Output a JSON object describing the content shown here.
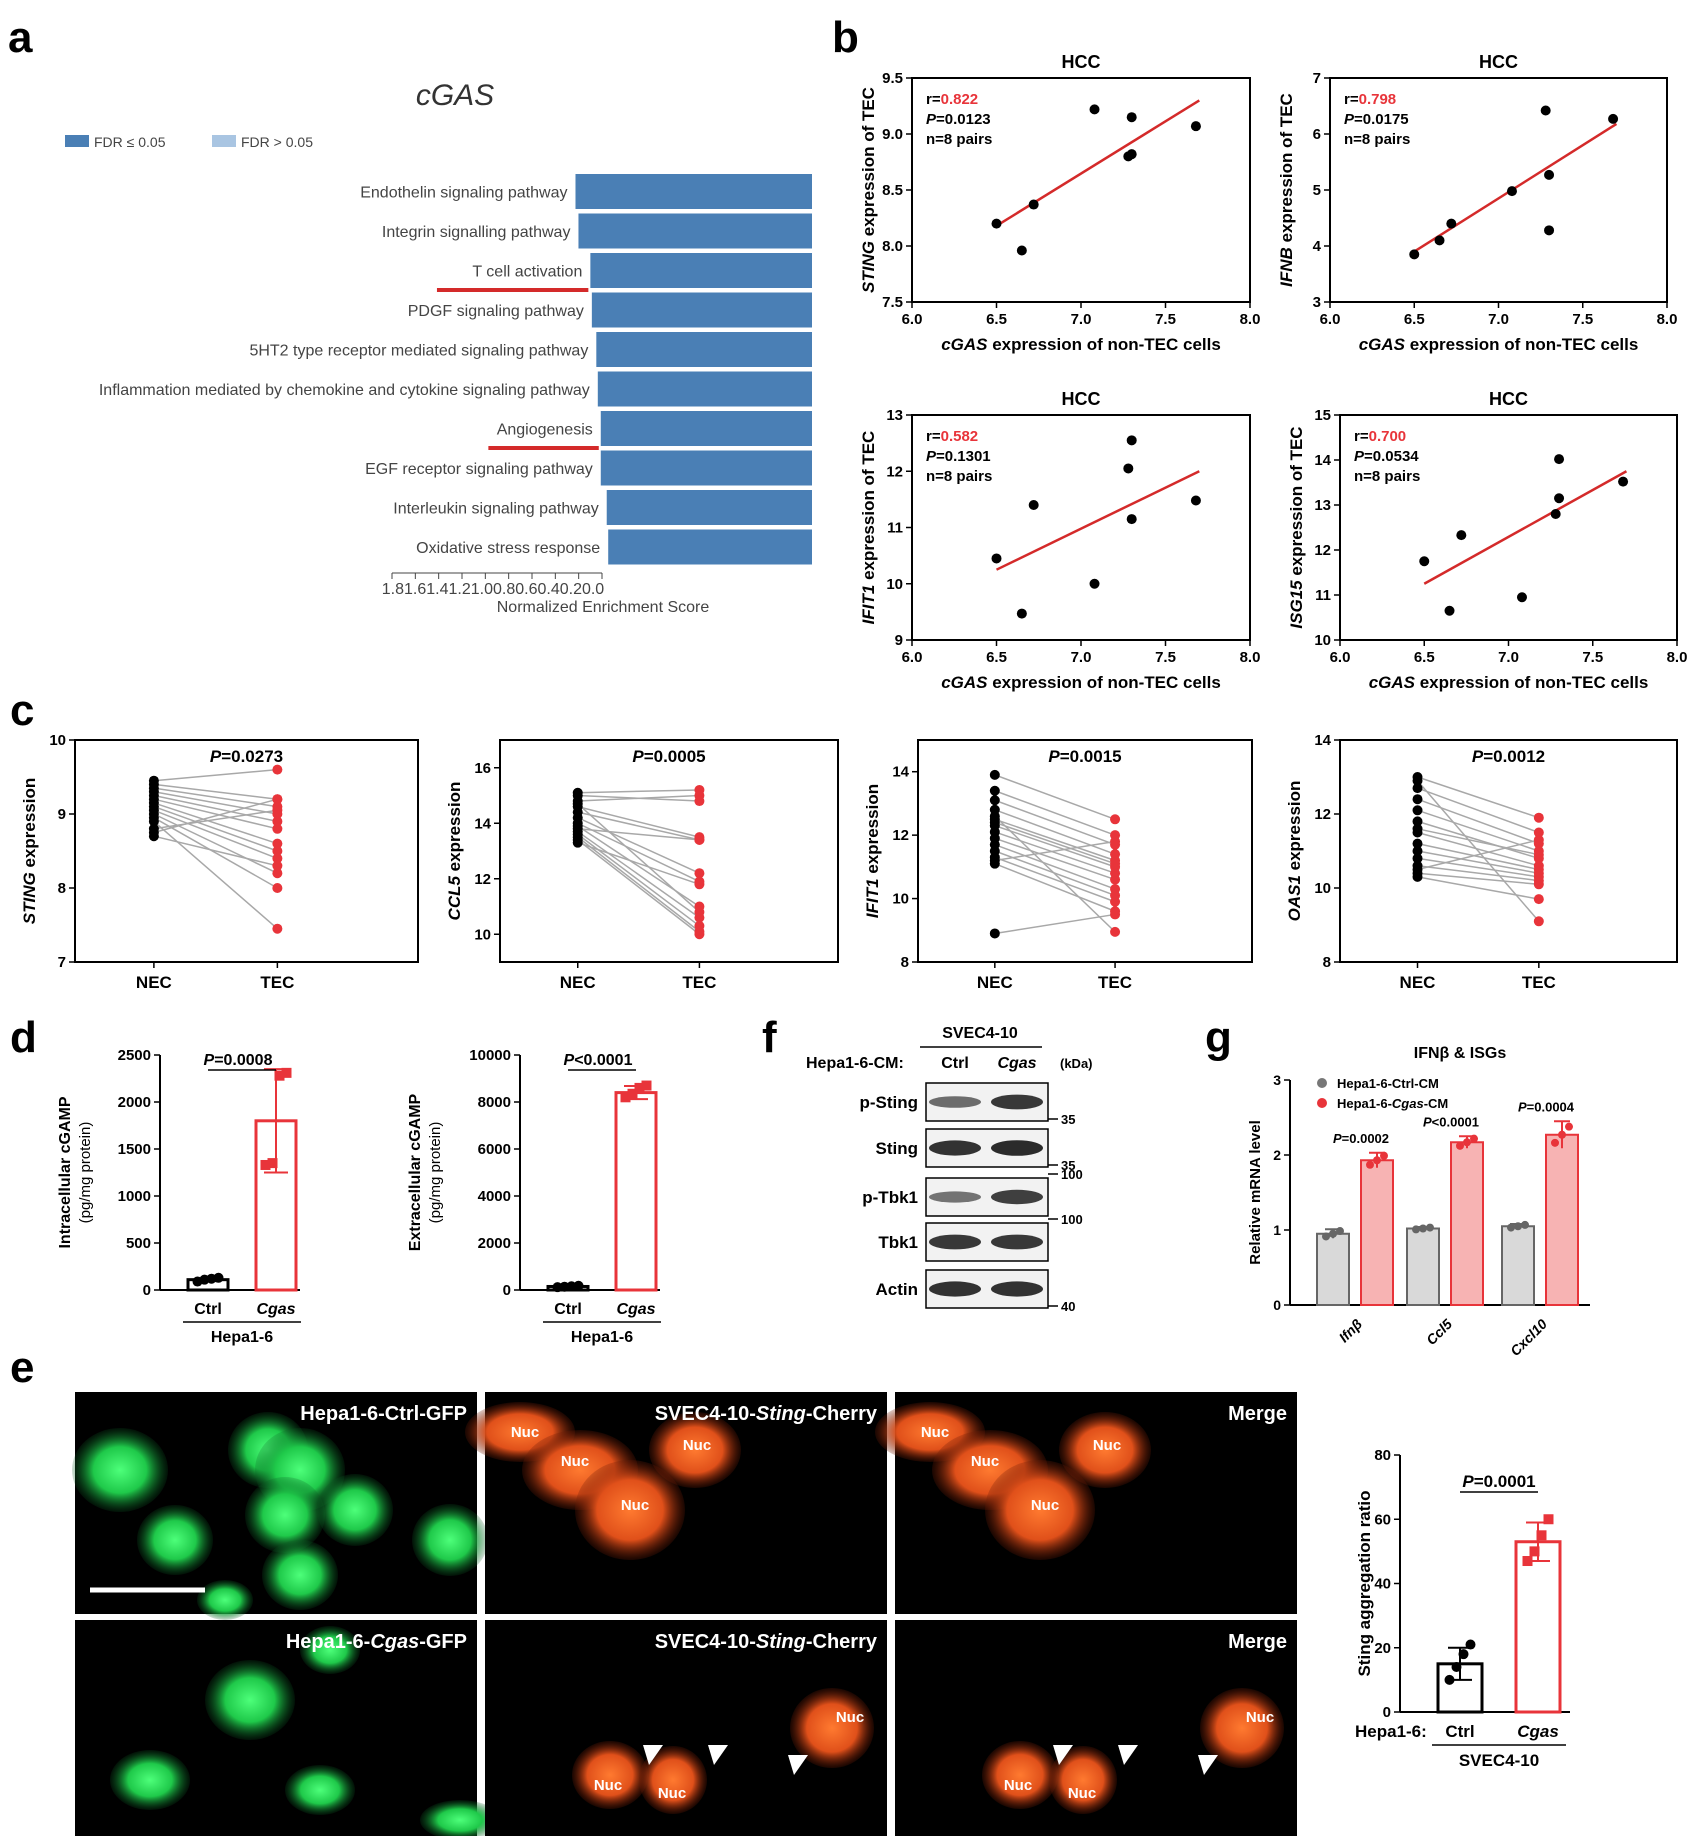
{
  "panel_labels": {
    "a": "a",
    "b": "b",
    "c": "c",
    "d": "d",
    "e": "e",
    "f": "f",
    "g": "g"
  },
  "colors": {
    "bar_blue": "#4a7fb5",
    "bar_light": "#a9c5e2",
    "red": "#e8343a",
    "red_fill": "#f7b3b3",
    "grey_line": "#a8a8a8",
    "grey_fill": "#d9d9d9",
    "fit_red": "#d42a2a"
  },
  "panel_a": {
    "title": "cGAS",
    "legend": [
      "FDR ≤ 0.05",
      "FDR > 0.05"
    ],
    "x_tick_string": "1.81.61.41.21.00.80.60.40.20.0",
    "xlabel": "Normalized Enrichment Score"
  },
  "panel_b_c_text": {
    "hcc": "HCC",
    "xlabel_b": "cGAS expression of non-TEC cells",
    "n_text": "n=8 pairs",
    "nec": "NEC",
    "tec": "TEC"
  },
  "panel_d": {
    "pairs": [
      {
        "ylabel1": "Intracellular cGAMP",
        "ylabel2": "(pg/mg protein)",
        "p_text": "P=0.0008",
        "ctrl": "Ctrl",
        "cgas": "Cgas",
        "group": "Hepa1-6"
      },
      {
        "ylabel1": "Extracellular cGAMP",
        "ylabel2": "(pg/mg protein)",
        "p_text": "P<0.0001",
        "ctrl": "Ctrl",
        "cgas": "Cgas",
        "group": "Hepa1-6"
      }
    ]
  },
  "panel_e": {
    "top_labels": [
      "Hepa1-6-Ctrl-GFP",
      "SVEC4-10-Sting-Cherry",
      "Merge"
    ],
    "bottom_labels": [
      "Hepa1-6-Cgas-GFP",
      "SVEC4-10-Sting-Cherry",
      "Merge"
    ],
    "nuc": "Nuc",
    "bar_ylabel": "Sting aggregation ratio",
    "bar_p": "P=0.0001",
    "bar_group_label": "Hepa1-6:",
    "bar_ctrl": "Ctrl",
    "bar_cgas": "Cgas",
    "bar_cell": "SVEC4-10"
  },
  "panel_f": {
    "cell": "SVEC4-10",
    "cm_label": "Hepa1-6-CM:",
    "lanes": [
      "Ctrl",
      "Cgas"
    ],
    "kda": "(kDa)",
    "blots": [
      {
        "name": "p-Sting",
        "marker": "35"
      },
      {
        "name": "Sting",
        "marker": "35"
      },
      {
        "name": "p-Tbk1",
        "marker": "100"
      },
      {
        "name": "Tbk1",
        "marker": "100"
      },
      {
        "name": "Actin",
        "marker": "40"
      }
    ]
  },
  "panel_g": {
    "title": "IFNβ & ISGs",
    "ylabel": "Relative mRNA level",
    "legend": [
      "Hepa1-6-Ctrl-CM",
      "Hepa1-6-Cgas-CM"
    ],
    "p_values": [
      "P=0.0002",
      "P<0.0001",
      "P=0.0004"
    ]
  },
  "chart_data": [
    {
      "id": "a",
      "type": "bar",
      "orientation": "horizontal",
      "title": "cGAS",
      "xlabel": "Normalized Enrichment Score",
      "xlim": [
        0,
        1.8
      ],
      "categories": [
        "Endothelin signaling pathway",
        "Integrin signalling pathway",
        "T cell activation",
        "PDGF signaling pathway",
        "5HT2 type receptor mediated signaling pathway",
        "Inflammation mediated by chemokine and cytokine signaling pathway",
        "Angiogenesis",
        "EGF receptor signaling pathway",
        "Interleukin signaling pathway",
        "Oxidative stress response"
      ],
      "values": [
        1.59,
        1.57,
        1.49,
        1.48,
        1.45,
        1.44,
        1.42,
        1.42,
        1.38,
        1.37
      ],
      "underlined": [
        "T cell activation",
        "Angiogenesis"
      ]
    },
    {
      "id": "b1",
      "type": "scatter",
      "title": "HCC",
      "xlabel": "cGAS expression of non-TEC cells",
      "ylabel": "STING expression of TEC",
      "xlim": [
        6.0,
        8.0
      ],
      "ylim": [
        7.5,
        9.5
      ],
      "xticks": [
        "6.0",
        "6.5",
        "7.0",
        "7.5",
        "8.0"
      ],
      "yticks": [
        "7.5",
        "8.0",
        "8.5",
        "9.0",
        "9.5"
      ],
      "r": "0.822",
      "p": "0.0123",
      "x": [
        6.5,
        6.65,
        6.72,
        7.08,
        7.28,
        7.3,
        7.3,
        7.68
      ],
      "y": [
        8.2,
        7.96,
        8.37,
        9.22,
        8.8,
        8.82,
        9.15,
        9.07
      ],
      "fit": [
        [
          6.5,
          8.18
        ],
        [
          7.7,
          9.3
        ]
      ]
    },
    {
      "id": "b2",
      "type": "scatter",
      "title": "HCC",
      "xlabel": "cGAS expression of non-TEC cells",
      "ylabel": "IFNB expression of TEC",
      "xlim": [
        6.0,
        8.0
      ],
      "ylim": [
        3,
        7
      ],
      "xticks": [
        "6.0",
        "6.5",
        "7.0",
        "7.5",
        "8.0"
      ],
      "yticks": [
        "3",
        "4",
        "5",
        "6",
        "7"
      ],
      "r": "0.798",
      "p": "0.0175",
      "x": [
        6.5,
        6.65,
        6.72,
        7.08,
        7.28,
        7.3,
        7.3,
        7.68
      ],
      "y": [
        3.85,
        4.1,
        4.4,
        4.98,
        6.42,
        5.27,
        4.28,
        6.27
      ],
      "fit": [
        [
          6.5,
          3.9
        ],
        [
          7.7,
          6.18
        ]
      ]
    },
    {
      "id": "b3",
      "type": "scatter",
      "title": "HCC",
      "xlabel": "cGAS expression of non-TEC cells",
      "ylabel": "IFIT1 expression of TEC",
      "xlim": [
        6.0,
        8.0
      ],
      "ylim": [
        9,
        13
      ],
      "xticks": [
        "6.0",
        "6.5",
        "7.0",
        "7.5",
        "8.0"
      ],
      "yticks": [
        "9",
        "10",
        "11",
        "12",
        "13"
      ],
      "r": "0.582",
      "p": "0.1301",
      "x": [
        6.5,
        6.65,
        6.72,
        7.08,
        7.28,
        7.3,
        7.3,
        7.68
      ],
      "y": [
        10.45,
        9.47,
        11.4,
        10.0,
        12.05,
        11.15,
        12.55,
        11.48
      ],
      "fit": [
        [
          6.5,
          10.25
        ],
        [
          7.7,
          12.0
        ]
      ]
    },
    {
      "id": "b4",
      "type": "scatter",
      "title": "HCC",
      "xlabel": "cGAS expression of non-TEC cells",
      "ylabel": "ISG15 expression of TEC",
      "xlim": [
        6.0,
        8.0
      ],
      "ylim": [
        10,
        15
      ],
      "xticks": [
        "6.0",
        "6.5",
        "7.0",
        "7.5",
        "8.0"
      ],
      "yticks": [
        "10",
        "11",
        "12",
        "13",
        "14",
        "15"
      ],
      "r": "0.700",
      "p": "0.0534",
      "x": [
        6.5,
        6.65,
        6.72,
        7.08,
        7.28,
        7.3,
        7.3,
        7.68
      ],
      "y": [
        11.75,
        10.65,
        12.33,
        10.95,
        12.8,
        13.15,
        14.02,
        13.52
      ],
      "fit": [
        [
          6.5,
          11.25
        ],
        [
          7.7,
          13.75
        ]
      ]
    },
    {
      "id": "c1",
      "type": "line",
      "ylabel": "STING expression",
      "ylim": [
        7,
        10
      ],
      "yticks": [
        "7",
        "8",
        "9",
        "10"
      ],
      "p_text": "P=0.0273",
      "categories": [
        "NEC",
        "TEC"
      ],
      "pairs": [
        [
          9.45,
          9.6
        ],
        [
          9.4,
          9.2
        ],
        [
          9.35,
          9.1
        ],
        [
          9.3,
          9.0
        ],
        [
          9.25,
          8.9
        ],
        [
          9.2,
          8.8
        ],
        [
          9.15,
          8.6
        ],
        [
          9.1,
          8.5
        ],
        [
          9.05,
          8.4
        ],
        [
          9.0,
          8.2
        ],
        [
          8.95,
          8.0
        ],
        [
          8.9,
          7.45
        ],
        [
          8.8,
          9.05
        ],
        [
          8.75,
          9.2
        ],
        [
          8.7,
          8.3
        ]
      ]
    },
    {
      "id": "c2",
      "type": "line",
      "ylabel": "CCL5 expression",
      "ylim": [
        9,
        17
      ],
      "yticks": [
        "10",
        "12",
        "14",
        "16"
      ],
      "p_text": "P=0.0005",
      "categories": [
        "NEC",
        "TEC"
      ],
      "pairs": [
        [
          15.1,
          15.2
        ],
        [
          15.0,
          14.8
        ],
        [
          14.8,
          15.0
        ],
        [
          14.6,
          13.5
        ],
        [
          14.4,
          13.4
        ],
        [
          14.2,
          12.2
        ],
        [
          14.0,
          11.9
        ],
        [
          13.9,
          11.0
        ],
        [
          13.7,
          10.6
        ],
        [
          13.6,
          10.3
        ],
        [
          13.5,
          10.1
        ],
        [
          13.4,
          10.0
        ],
        [
          13.3,
          11.8
        ],
        [
          13.8,
          13.4
        ],
        [
          14.7,
          10.8
        ]
      ]
    },
    {
      "id": "c3",
      "type": "line",
      "ylabel": "IFIT1 expression",
      "ylim": [
        8,
        15
      ],
      "yticks": [
        "8",
        "10",
        "12",
        "14"
      ],
      "p_text": "P=0.0015",
      "categories": [
        "NEC",
        "TEC"
      ],
      "pairs": [
        [
          13.9,
          12.5
        ],
        [
          13.4,
          12.0
        ],
        [
          13.1,
          11.7
        ],
        [
          12.8,
          11.4
        ],
        [
          12.5,
          11.2
        ],
        [
          12.3,
          11.0
        ],
        [
          12.1,
          10.8
        ],
        [
          11.9,
          10.6
        ],
        [
          11.7,
          10.3
        ],
        [
          11.5,
          10.1
        ],
        [
          11.3,
          9.9
        ],
        [
          11.1,
          9.6
        ],
        [
          8.9,
          9.5
        ],
        [
          12.6,
          8.95
        ],
        [
          11.2,
          11.8
        ],
        [
          12.4,
          11.1
        ]
      ]
    },
    {
      "id": "c4",
      "type": "line",
      "ylabel": "OAS1 expression",
      "ylim": [
        8,
        14
      ],
      "yticks": [
        "8",
        "10",
        "12",
        "14"
      ],
      "p_text": "P=0.0012",
      "categories": [
        "NEC",
        "TEC"
      ],
      "pairs": [
        [
          13.0,
          11.9
        ],
        [
          12.7,
          11.5
        ],
        [
          12.4,
          11.2
        ],
        [
          12.1,
          11.0
        ],
        [
          11.8,
          10.8
        ],
        [
          11.5,
          10.6
        ],
        [
          11.2,
          10.5
        ],
        [
          11.0,
          10.4
        ],
        [
          10.8,
          10.3
        ],
        [
          10.6,
          10.2
        ],
        [
          10.4,
          10.1
        ],
        [
          10.3,
          9.7
        ],
        [
          12.9,
          9.1
        ],
        [
          11.6,
          10.9
        ],
        [
          10.5,
          11.3
        ]
      ]
    },
    {
      "id": "d1",
      "type": "bar",
      "ylabel": "Intracellular cGAMP (pg/mg protein)",
      "ylim": [
        0,
        2500
      ],
      "yticks": [
        "0",
        "500",
        "1000",
        "1500",
        "2000",
        "2500"
      ],
      "categories": [
        "Ctrl",
        "Cgas"
      ],
      "values": [
        110,
        1800
      ],
      "sd": [
        15,
        550
      ],
      "points": [
        [
          90,
          110,
          120,
          130
        ],
        [
          1330,
          1350,
          2280,
          2310
        ]
      ]
    },
    {
      "id": "d2",
      "type": "bar",
      "ylabel": "Extracellular cGAMP (pg/mg protein)",
      "ylim": [
        0,
        10000
      ],
      "yticks": [
        "0",
        "2000",
        "4000",
        "6000",
        "8000",
        "10000"
      ],
      "categories": [
        "Ctrl",
        "Cgas"
      ],
      "values": [
        150,
        8400
      ],
      "sd": [
        30,
        280
      ],
      "points": [
        [
          120,
          140,
          160,
          180
        ],
        [
          8200,
          8350,
          8600,
          8700
        ]
      ]
    },
    {
      "id": "e_bar",
      "type": "bar",
      "ylabel": "Sting aggregation ratio",
      "ylim": [
        0,
        80
      ],
      "yticks": [
        "0",
        "20",
        "40",
        "60",
        "80"
      ],
      "categories": [
        "Ctrl",
        "Cgas"
      ],
      "values": [
        15,
        53
      ],
      "sd": [
        5,
        6
      ],
      "points": [
        [
          10,
          14,
          18,
          21
        ],
        [
          47,
          50,
          55,
          60
        ]
      ]
    },
    {
      "id": "g",
      "type": "bar",
      "ylabel": "Relative mRNA level",
      "ylim": [
        0,
        3
      ],
      "yticks": [
        "0",
        "1",
        "2",
        "3"
      ],
      "categories": [
        "Ifnβ",
        "Ccl5",
        "Cxcl10"
      ],
      "series": [
        {
          "name": "Hepa1-6-Ctrl-CM",
          "values": [
            0.95,
            1.02,
            1.05
          ],
          "sd": [
            0.06,
            0.02,
            0.03
          ]
        },
        {
          "name": "Hepa1-6-Cgas-CM",
          "values": [
            1.93,
            2.17,
            2.27
          ],
          "sd": [
            0.1,
            0.08,
            0.18
          ]
        }
      ]
    }
  ]
}
